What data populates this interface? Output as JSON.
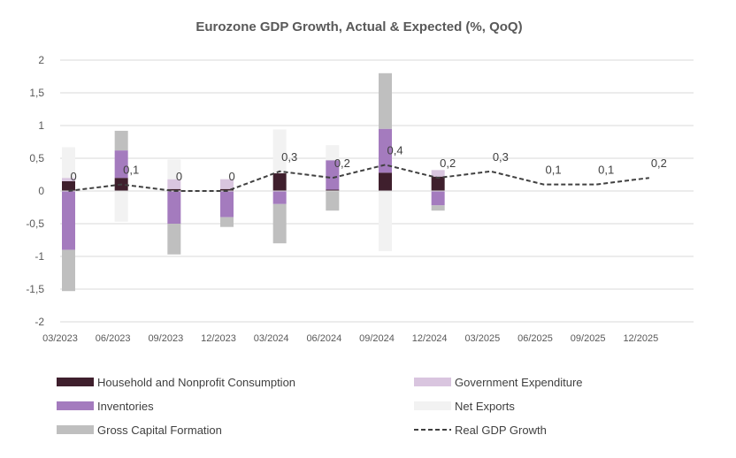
{
  "chart_data": {
    "type": "bar",
    "title": "Eurozone GDP Growth, Actual & Expected (%, QoQ)",
    "xlabel": "",
    "ylabel": "",
    "ylim": [
      -2,
      2
    ],
    "yticks": [
      "2",
      "1,5",
      "1",
      "0,5",
      "0",
      "-0,5",
      "-1",
      "-1,5",
      "-2"
    ],
    "ytick_values": [
      2,
      1.5,
      1,
      0.5,
      0,
      -0.5,
      -1,
      -1.5,
      -2
    ],
    "categories": [
      "03/2023",
      "06/2023",
      "09/2023",
      "12/2023",
      "03/2024",
      "06/2024",
      "09/2024",
      "12/2024",
      "03/2025",
      "06/2025",
      "09/2025",
      "12/2025"
    ],
    "stacked": true,
    "grid": true,
    "legend_position": "bottom",
    "series": [
      {
        "name": "Household and Nonprofit Consumption",
        "type": "bar",
        "color": "#3f1f2d",
        "values": [
          0.15,
          0.2,
          0.03,
          0.03,
          0.27,
          0.02,
          0.28,
          0.22,
          null,
          null,
          null,
          null
        ]
      },
      {
        "name": "Inventories",
        "type": "bar",
        "color": "#a47bbe",
        "values": [
          -0.9,
          0.42,
          -0.5,
          -0.4,
          -0.2,
          0.45,
          0.67,
          -0.22,
          null,
          null,
          null,
          null
        ]
      },
      {
        "name": "Gross Capital Formation",
        "type": "bar",
        "color": "#bfbfbf",
        "values": [
          -0.63,
          0.3,
          -0.47,
          -0.15,
          -0.6,
          -0.3,
          0.85,
          -0.08,
          null,
          null,
          null,
          null
        ]
      },
      {
        "name": "Government Expenditure",
        "type": "bar",
        "color": "#d9c5df",
        "values": [
          0.05,
          null,
          0.15,
          0.15,
          null,
          null,
          null,
          0.1,
          null,
          null,
          null,
          null
        ]
      },
      {
        "name": "Net Exports",
        "type": "bar",
        "color": "#f2f2f2",
        "values": [
          0.47,
          -0.47,
          0.3,
          null,
          0.67,
          0.23,
          -0.92,
          null,
          null,
          null,
          null,
          null
        ]
      },
      {
        "name": "Real GDP Growth",
        "type": "line",
        "color": "#404040",
        "values": [
          0,
          0.1,
          0,
          0,
          0.3,
          0.2,
          0.4,
          0.2,
          0.3,
          0.1,
          0.1,
          0.2
        ],
        "labels": [
          "0",
          "0,1",
          "0",
          "0",
          "0,3",
          "0,2",
          "0,4",
          "0,2",
          "0,3",
          "0,1",
          "0,1",
          "0,2"
        ]
      }
    ]
  }
}
